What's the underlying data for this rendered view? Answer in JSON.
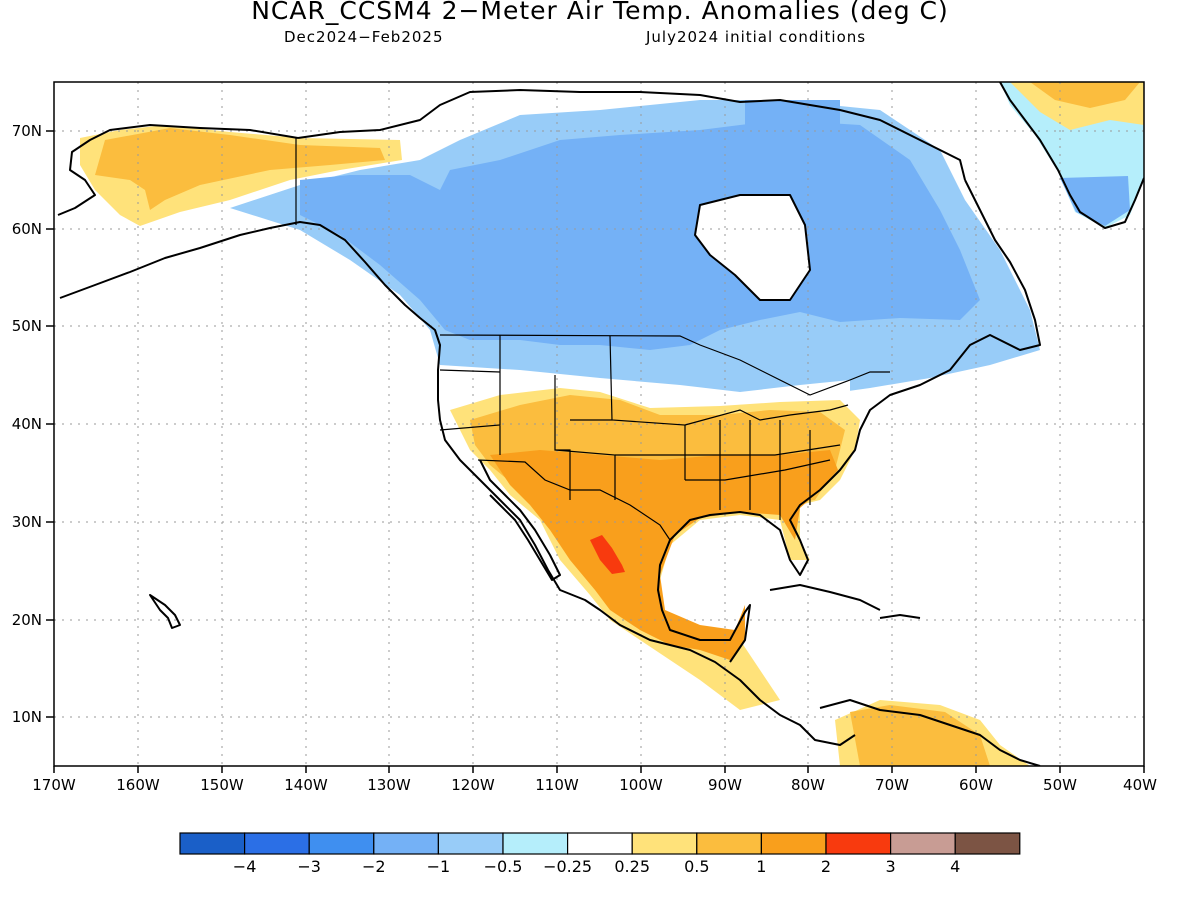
{
  "title": "NCAR_CCSM4 2−Meter Air Temp. Anomalies (deg C)",
  "subtitle_left": "Dec2024−Feb2025",
  "subtitle_right": "July2024 initial conditions",
  "lat_labels": [
    "70N",
    "60N",
    "50N",
    "40N",
    "30N",
    "20N",
    "10N"
  ],
  "lon_labels": [
    "170W",
    "160W",
    "150W",
    "140W",
    "130W",
    "120W",
    "110W",
    "100W",
    "90W",
    "80W",
    "70W",
    "60W",
    "50W",
    "40W"
  ],
  "colorbar": {
    "colors": [
      "#1a5fc8",
      "#2b6fe6",
      "#3f8ff0",
      "#74b1f6",
      "#98ccf8",
      "#b5eefb",
      "#ffffff",
      "#ffe27a",
      "#fbbd3e",
      "#f99f1c",
      "#f83a0e",
      "#c89c94",
      "#7c5444"
    ],
    "labels": [
      "−4",
      "−3",
      "−2",
      "−1",
      "−0.5",
      "−0.25",
      "0.25",
      "0.5",
      "1",
      "2",
      "3",
      "4"
    ]
  }
}
